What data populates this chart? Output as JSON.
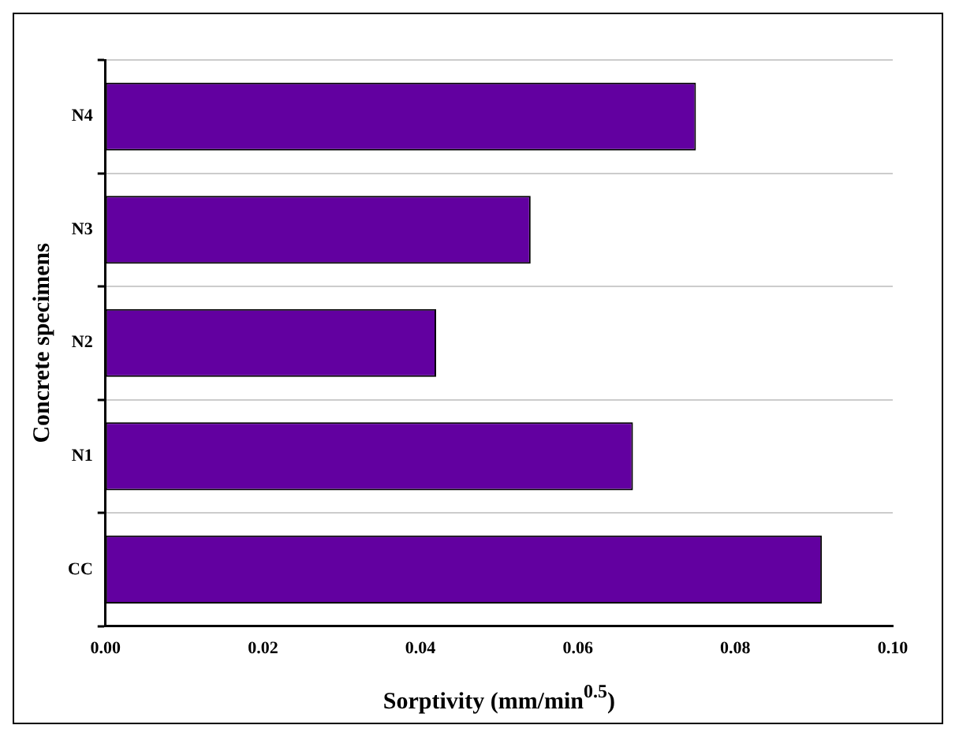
{
  "chart_data": {
    "type": "bar",
    "orientation": "horizontal",
    "xlabel": "Sorptivity (mm/min$^{0.5}$)",
    "ylabel": "Concrete specimens",
    "categories": [
      "N4",
      "N3",
      "N2",
      "N1",
      "CC"
    ],
    "values": [
      0.075,
      0.054,
      0.042,
      0.067,
      0.091
    ],
    "color": "#6200a0",
    "xlim": [
      0,
      0.1
    ],
    "xticks": [
      {
        "value": 0,
        "label": "0.00"
      },
      {
        "value": 0.02,
        "label": "0.02"
      },
      {
        "value": 0.04,
        "label": "0.04"
      },
      {
        "value": 0.06,
        "label": "0.06"
      },
      {
        "value": 0.08,
        "label": "0.08"
      },
      {
        "value": 0.1,
        "label": "0.10"
      }
    ],
    "grid": "y",
    "legend": false
  }
}
